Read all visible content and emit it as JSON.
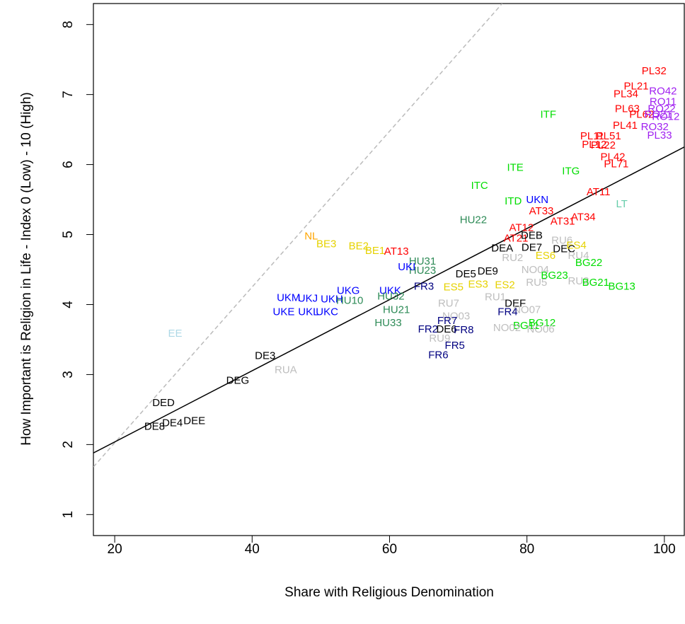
{
  "chart_data": {
    "type": "scatter",
    "x_label": "Share with Religious Denomination",
    "y_label": "How Important is Religion in Life - Index 0 (Low) - 10 (High)",
    "xlim": [
      16.9,
      102.9
    ],
    "ylim": [
      0.7,
      8.3
    ],
    "xticks": [
      20,
      40,
      60,
      80,
      100
    ],
    "yticks": [
      1,
      2,
      3,
      4,
      5,
      6,
      7,
      8
    ],
    "labels": [
      "PL32",
      "PL21",
      "RO42",
      "PL34",
      "RO11",
      "PL63",
      "RO22",
      "PL62",
      "RO21",
      "RO12",
      "PL41",
      "ITF",
      "RO32",
      "PL51",
      "PL11",
      "PL12",
      "PL22",
      "PL33",
      "PL42",
      "PL71",
      "ITE",
      "ITG",
      "ITC",
      "AT11",
      "LT",
      "UKN",
      "ITD",
      "HU22",
      "AT33",
      "AT34",
      "AT31",
      "AT12",
      "AT21",
      "DEB",
      "DEA",
      "DE7",
      "DEC",
      "RU6",
      "ES4",
      "RU2",
      "RU4",
      "ES6",
      "BG22",
      "BG23",
      "NO04",
      "RU5",
      "RU3",
      "BG21",
      "BG13",
      "NL",
      "BE3",
      "BE2",
      "BE1",
      "AT13",
      "HU31",
      "HU23",
      "UKI",
      "DE5",
      "DE9",
      "FR3",
      "ES5",
      "ES3",
      "ES2",
      "UKK",
      "HU32",
      "UKG",
      "UKJ",
      "UKH",
      "UKM",
      "HU10",
      "UKE",
      "UKL",
      "UKC",
      "HU21",
      "HU33",
      "RU7",
      "RU1",
      "DEF",
      "NO07",
      "FR4",
      "NO03",
      "FR7",
      "FR2",
      "DE6",
      "FR8",
      "RU9",
      "FR5",
      "FR6",
      "BG12",
      "BG11",
      "NO02",
      "NO06",
      "EE",
      "DE3",
      "RUA",
      "DEG",
      "DED",
      "DEE",
      "DE4",
      "DE8"
    ],
    "x": [
      98.5,
      95.9,
      99.8,
      94.4,
      99.8,
      94.6,
      99.6,
      96.7,
      99.1,
      100.2,
      94.3,
      83.1,
      98.6,
      91.9,
      89.5,
      89.8,
      91.1,
      99.3,
      92.5,
      93.0,
      78.3,
      86.4,
      73.1,
      90.4,
      93.8,
      81.5,
      78.0,
      72.2,
      82.1,
      88.2,
      85.2,
      79.2,
      78.4,
      80.7,
      76.4,
      80.7,
      85.4,
      85.1,
      87.2,
      77.9,
      87.5,
      82.7,
      89.0,
      84.0,
      81.2,
      81.4,
      87.5,
      90.0,
      93.8,
      48.6,
      50.8,
      55.5,
      57.9,
      61.0,
      64.8,
      64.8,
      62.5,
      71.1,
      74.3,
      65.0,
      69.3,
      72.9,
      76.8,
      60.1,
      60.2,
      54.0,
      48.1,
      51.6,
      45.3,
      54.2,
      44.6,
      48.2,
      50.9,
      61.0,
      59.8,
      68.6,
      75.4,
      78.3,
      80.0,
      77.2,
      69.7,
      68.4,
      65.6,
      68.3,
      70.8,
      67.3,
      69.5,
      67.1,
      82.2,
      79.9,
      77.1,
      82.0,
      28.8,
      41.9,
      44.9,
      37.9,
      27.1,
      31.6,
      28.4,
      25.8
    ],
    "y": [
      7.33,
      7.11,
      7.04,
      7.0,
      6.89,
      6.79,
      6.79,
      6.71,
      6.71,
      6.68,
      6.55,
      6.71,
      6.53,
      6.4,
      6.4,
      6.28,
      6.27,
      6.41,
      6.1,
      6.0,
      5.95,
      5.9,
      5.69,
      5.6,
      5.43,
      5.49,
      5.47,
      5.2,
      5.33,
      5.24,
      5.18,
      5.09,
      4.94,
      4.98,
      4.8,
      4.81,
      4.79,
      4.91,
      4.84,
      4.66,
      4.69,
      4.69,
      4.59,
      4.41,
      4.49,
      4.31,
      4.33,
      4.31,
      4.25,
      4.97,
      4.86,
      4.83,
      4.76,
      4.75,
      4.61,
      4.48,
      4.53,
      4.43,
      4.47,
      4.25,
      4.24,
      4.28,
      4.27,
      4.19,
      4.11,
      4.19,
      4.08,
      4.07,
      4.09,
      4.05,
      3.89,
      3.89,
      3.89,
      3.92,
      3.73,
      4.01,
      4.1,
      4.01,
      3.92,
      3.89,
      3.83,
      3.76,
      3.64,
      3.64,
      3.63,
      3.51,
      3.41,
      3.27,
      3.73,
      3.69,
      3.66,
      3.64,
      3.58,
      3.26,
      3.06,
      2.91,
      2.59,
      2.33,
      2.3,
      2.25
    ],
    "colors": [
      "#ff0000",
      "#ff0000",
      "#a020f0",
      "#ff0000",
      "#a020f0",
      "#ff0000",
      "#a020f0",
      "#ff0000",
      "#a020f0",
      "#a020f0",
      "#ff0000",
      "#00dd00",
      "#a020f0",
      "#ff0000",
      "#ff0000",
      "#ff0000",
      "#ff0000",
      "#a020f0",
      "#ff0000",
      "#ff0000",
      "#00dd00",
      "#00dd00",
      "#00dd00",
      "#ff0000",
      "#66cdaa",
      "#0000ff",
      "#00dd00",
      "#2e8b57",
      "#ff0000",
      "#ff0000",
      "#ff0000",
      "#ff0000",
      "#ff0000",
      "#000000",
      "#000000",
      "#000000",
      "#000000",
      "#bebebe",
      "#e6d200",
      "#bebebe",
      "#bebebe",
      "#e6d200",
      "#00dd00",
      "#00dd00",
      "#bebebe",
      "#bebebe",
      "#bebebe",
      "#00dd00",
      "#00dd00",
      "#ffa500",
      "#e6d200",
      "#e6d200",
      "#e6d200",
      "#ff0000",
      "#2e8b57",
      "#2e8b57",
      "#0000ff",
      "#000000",
      "#000000",
      "#000080",
      "#e6d200",
      "#e6d200",
      "#e6d200",
      "#0000ff",
      "#2e8b57",
      "#0000ff",
      "#0000ff",
      "#0000ff",
      "#0000ff",
      "#2e8b57",
      "#0000ff",
      "#0000ff",
      "#0000ff",
      "#2e8b57",
      "#2e8b57",
      "#bebebe",
      "#bebebe",
      "#000000",
      "#bebebe",
      "#000080",
      "#bebebe",
      "#000080",
      "#000080",
      "#000000",
      "#000080",
      "#bebebe",
      "#000080",
      "#000080",
      "#00dd00",
      "#00dd00",
      "#bebebe",
      "#bebebe",
      "#add8e6",
      "#000000",
      "#bebebe",
      "#000000",
      "#000000",
      "#000000",
      "#000000",
      "#000000"
    ],
    "fit_line": {
      "x": [
        16.9,
        102.9
      ],
      "y": [
        1.88,
        6.25
      ],
      "color": "#000000"
    },
    "diagonal_line": {
      "x": [
        16.9,
        76.4
      ],
      "y": [
        1.68,
        8.3
      ],
      "color": "#bbbbbb"
    }
  }
}
